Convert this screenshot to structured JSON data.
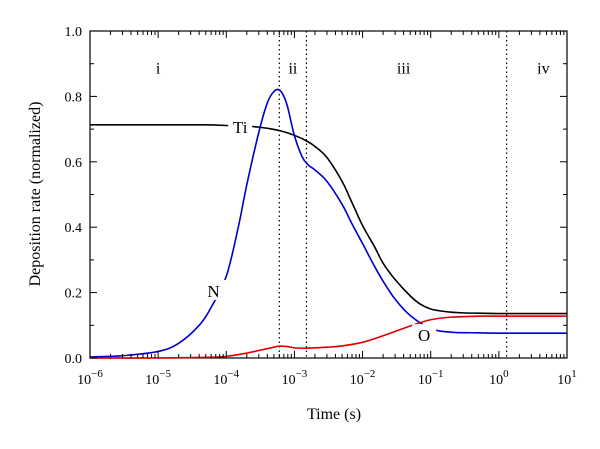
{
  "chart_data": {
    "type": "line",
    "xscale": "log",
    "xlim": [
      1e-06,
      10
    ],
    "ylim": [
      0.0,
      1.0
    ],
    "xlabel": "Time (s)",
    "ylabel": "Deposition rate (normalized)",
    "grid": false,
    "x_ticks": [
      1e-06,
      1e-05,
      0.0001,
      0.001,
      0.01,
      0.1,
      1,
      10
    ],
    "x_tick_labels": [
      {
        "base": "10",
        "exp": "−6"
      },
      {
        "base": "10",
        "exp": "−5"
      },
      {
        "base": "10",
        "exp": "−4"
      },
      {
        "base": "10",
        "exp": "−3"
      },
      {
        "base": "10",
        "exp": "−2"
      },
      {
        "base": "10",
        "exp": "−1"
      },
      {
        "base": "10",
        "exp": "0"
      },
      {
        "base": "10",
        "exp": "1"
      }
    ],
    "y_ticks": [
      0.0,
      0.2,
      0.4,
      0.6,
      0.8,
      1.0
    ],
    "y_tick_labels": [
      "0.0",
      "0.2",
      "0.4",
      "0.6",
      "0.8",
      "1.0"
    ],
    "dividers": [
      0.0006,
      0.0015,
      1.3
    ],
    "regions": [
      {
        "label": "i",
        "x": 1e-05,
        "y": 0.885
      },
      {
        "label": "ii",
        "x": 0.00095,
        "y": 0.885
      },
      {
        "label": "iii",
        "x": 0.04,
        "y": 0.885
      },
      {
        "label": "iv",
        "x": 4.5,
        "y": 0.885
      }
    ],
    "series": [
      {
        "name": "Ti",
        "color": "#000000",
        "label_at": {
          "x": 0.00016,
          "y": 0.707
        },
        "x": [
          1e-06,
          1e-05,
          5e-05,
          0.0001,
          0.0002,
          0.0003,
          0.0005,
          0.0007,
          0.001,
          0.0015,
          0.002,
          0.003,
          0.005,
          0.007,
          0.01,
          0.015,
          0.02,
          0.03,
          0.05,
          0.07,
          0.1,
          0.15,
          0.2,
          0.3,
          0.5,
          1,
          2,
          10
        ],
        "y": [
          0.713,
          0.713,
          0.713,
          0.711,
          0.709,
          0.706,
          0.699,
          0.692,
          0.681,
          0.664,
          0.647,
          0.613,
          0.54,
          0.475,
          0.405,
          0.34,
          0.29,
          0.24,
          0.19,
          0.165,
          0.15,
          0.143,
          0.14,
          0.138,
          0.137,
          0.136,
          0.136,
          0.136
        ]
      },
      {
        "name": "N",
        "color": "#0000cc",
        "label_at": {
          "x": 6.5e-05,
          "y": 0.205
        },
        "x": [
          1e-06,
          3e-06,
          1e-05,
          2e-05,
          4e-05,
          6e-05,
          0.0001,
          0.00015,
          0.0002,
          0.0003,
          0.0004,
          0.0005,
          0.0006,
          0.0007,
          0.0008,
          0.001,
          0.0013,
          0.0016,
          0.002,
          0.003,
          0.005,
          0.007,
          0.01,
          0.015,
          0.02,
          0.03,
          0.05,
          0.1,
          0.2,
          0.5,
          1,
          10
        ],
        "y": [
          0.003,
          0.007,
          0.02,
          0.045,
          0.1,
          0.155,
          0.25,
          0.4,
          0.53,
          0.69,
          0.78,
          0.815,
          0.82,
          0.8,
          0.765,
          0.68,
          0.615,
          0.59,
          0.575,
          0.54,
          0.47,
          0.41,
          0.35,
          0.28,
          0.235,
          0.18,
          0.13,
          0.09,
          0.079,
          0.077,
          0.076,
          0.076
        ]
      },
      {
        "name": "O",
        "color": "#dd0000",
        "label_at": {
          "x": 0.08,
          "y": 0.07
        },
        "x": [
          1e-06,
          1e-05,
          5e-05,
          0.0001,
          0.0002,
          0.0003,
          0.0005,
          0.0006,
          0.0008,
          0.001,
          0.0015,
          0.002,
          0.003,
          0.005,
          0.01,
          0.02,
          0.05,
          0.1,
          0.2,
          0.5,
          1,
          10
        ],
        "y": [
          0.0,
          0.0,
          0.002,
          0.005,
          0.015,
          0.023,
          0.033,
          0.036,
          0.035,
          0.031,
          0.03,
          0.031,
          0.033,
          0.037,
          0.048,
          0.068,
          0.098,
          0.117,
          0.125,
          0.128,
          0.128,
          0.128
        ]
      }
    ]
  }
}
